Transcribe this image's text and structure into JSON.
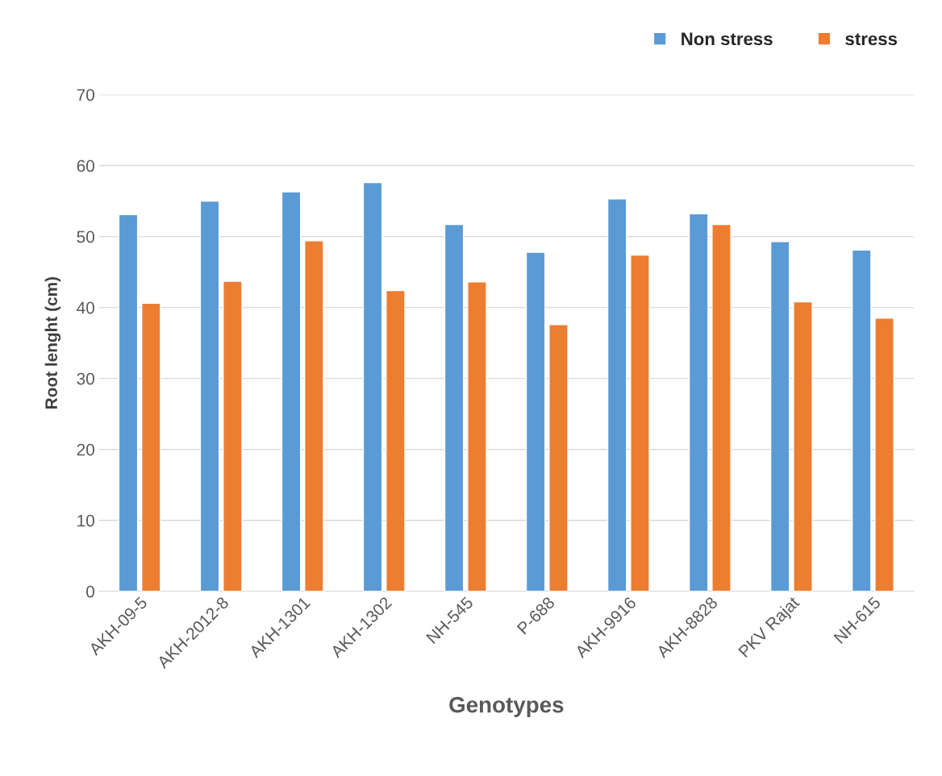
{
  "chart_data": {
    "type": "bar",
    "xlabel": "Genotypes",
    "ylabel": "Root lenght (cm)",
    "categories": [
      "AKH-09-5",
      "AKH-2012-8",
      "AKH-1301",
      "AKH-1302",
      "NH-545",
      "P-688",
      "AKH-9916",
      "AKH-8828",
      "PKV Rajat",
      "NH-615"
    ],
    "series": [
      {
        "name": "Non stress",
        "color": "#5b9bd5",
        "values": [
          53.1,
          55.0,
          56.3,
          57.6,
          51.7,
          47.8,
          55.3,
          53.2,
          49.3,
          48.1
        ]
      },
      {
        "name": "stress",
        "color": "#ed7d31",
        "values": [
          40.6,
          43.7,
          49.4,
          42.4,
          43.6,
          37.6,
          47.4,
          51.7,
          40.8,
          38.5
        ]
      }
    ],
    "ylim": [
      0,
      70
    ],
    "yticks": [
      0,
      10,
      20,
      30,
      40,
      50,
      60,
      70
    ],
    "grid": "y",
    "legend": "top right"
  }
}
